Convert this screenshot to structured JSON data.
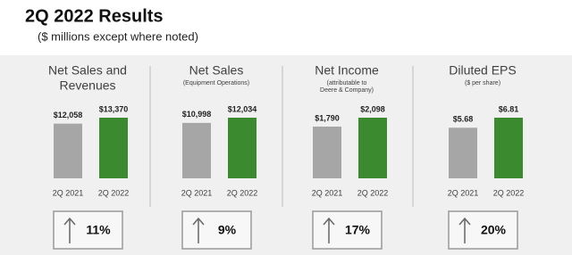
{
  "header": {
    "title": "2Q 2022 Results",
    "subtitle": "($ millions except where noted)"
  },
  "chart_data": [
    {
      "type": "bar",
      "title": [
        "Net Sales and",
        "Revenues"
      ],
      "categories": [
        "2Q 2021",
        "2Q 2022"
      ],
      "values": [
        12058,
        13370
      ],
      "value_labels": [
        "$12,058",
        "$13,370"
      ],
      "colors": [
        "#a6a6a6",
        "#3b8a2f"
      ],
      "annotation": "11%"
    },
    {
      "type": "bar",
      "title": [
        "Net Sales"
      ],
      "subtitle": [
        "(Equipment Operations)"
      ],
      "categories": [
        "2Q 2021",
        "2Q 2022"
      ],
      "values": [
        10998,
        12034
      ],
      "value_labels": [
        "$10,998",
        "$12,034"
      ],
      "colors": [
        "#a6a6a6",
        "#3b8a2f"
      ],
      "annotation": "9%"
    },
    {
      "type": "bar",
      "title": [
        "Net Income"
      ],
      "subtitle": [
        "(attributable to",
        "Deere & Company)"
      ],
      "categories": [
        "2Q 2021",
        "2Q 2022"
      ],
      "values": [
        1790,
        2098
      ],
      "value_labels": [
        "$1,790",
        "$2,098"
      ],
      "colors": [
        "#a6a6a6",
        "#3b8a2f"
      ],
      "annotation": "17%"
    },
    {
      "type": "bar",
      "title": [
        "Diluted EPS"
      ],
      "subtitle": [
        "($ per share)"
      ],
      "categories": [
        "2Q 2021",
        "2Q 2022"
      ],
      "values": [
        5.68,
        6.81
      ],
      "value_labels": [
        "$5.68",
        "$6.81"
      ],
      "colors": [
        "#a6a6a6",
        "#3b8a2f"
      ],
      "annotation": "20%"
    }
  ]
}
